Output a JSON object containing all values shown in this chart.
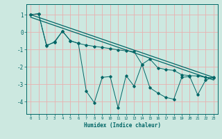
{
  "xlabel": "Humidex (Indice chaleur)",
  "bg_color": "#cce8e0",
  "line_color": "#006666",
  "grid_color_major": "#e8b0b0",
  "grid_color_minor": "#e8c8c8",
  "xlim": [
    -0.5,
    23.5
  ],
  "ylim": [
    -4.7,
    1.6
  ],
  "yticks": [
    1,
    0,
    -1,
    -2,
    -3,
    -4
  ],
  "xticks": [
    0,
    1,
    2,
    3,
    4,
    5,
    6,
    7,
    8,
    9,
    10,
    11,
    12,
    13,
    14,
    15,
    16,
    17,
    18,
    19,
    20,
    21,
    22,
    23
  ],
  "line1_x": [
    0,
    1,
    2,
    3,
    4,
    5,
    6,
    7,
    8,
    9,
    10,
    11,
    12,
    13,
    14,
    15,
    16,
    17,
    18,
    19,
    20,
    21,
    22,
    23
  ],
  "line1_y": [
    1.0,
    1.05,
    -0.8,
    -0.55,
    0.05,
    -0.5,
    -0.65,
    -3.4,
    -4.05,
    -2.6,
    -2.55,
    -4.35,
    -2.5,
    -3.1,
    -1.85,
    -3.2,
    -3.5,
    -3.75,
    -3.85,
    -2.6,
    -2.55,
    -3.6,
    -2.75,
    -2.6
  ],
  "line2_x": [
    0,
    1,
    2,
    3,
    4,
    5,
    6,
    7,
    8,
    9,
    10,
    11,
    12,
    13,
    14,
    15,
    16,
    17,
    18,
    19,
    20,
    21,
    22,
    23
  ],
  "line2_y": [
    1.0,
    1.05,
    -0.75,
    -0.6,
    0.05,
    -0.5,
    -0.65,
    -0.75,
    -0.82,
    -0.88,
    -0.95,
    -1.02,
    -1.08,
    -1.12,
    -1.85,
    -1.55,
    -2.05,
    -2.15,
    -2.2,
    -2.45,
    -2.5,
    -2.52,
    -2.6,
    -2.62
  ],
  "trend1_x": [
    0,
    23
  ],
  "trend1_y": [
    1.0,
    -2.6
  ],
  "trend2_x": [
    0,
    23
  ],
  "trend2_y": [
    0.85,
    -2.75
  ]
}
